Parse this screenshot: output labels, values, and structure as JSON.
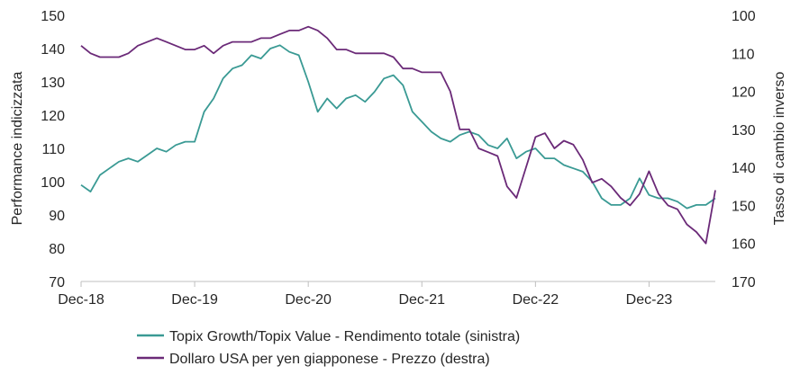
{
  "chart_data": {
    "type": "line",
    "xlabel": "",
    "ylabel_left": "Performance indicizzata",
    "ylabel_right": "Tasso di cambio inverso",
    "x_ticks": [
      "Dec-18",
      "Dec-19",
      "Dec-20",
      "Dec-21",
      "Dec-22",
      "Dec-23"
    ],
    "x_range": [
      "2018-12",
      "2024-07"
    ],
    "y_left": {
      "ylim": [
        70,
        150
      ],
      "ticks": [
        70,
        80,
        90,
        100,
        110,
        120,
        130,
        140,
        150
      ]
    },
    "y_right": {
      "ylim": [
        170,
        100
      ],
      "inverted": true,
      "ticks": [
        100,
        110,
        120,
        130,
        140,
        150,
        160,
        170
      ]
    },
    "grid": false,
    "legend_position": "bottom",
    "colors": {
      "growth_value": "#3a9a94",
      "usd_jpy": "#6b2a78",
      "axis": "#bfbfbf",
      "text": "#262626"
    },
    "series": [
      {
        "name": "Topix Growth/Topix Value - Rendimento totale (sinistra)",
        "axis": "left",
        "x": [
          "2018-12",
          "2019-01",
          "2019-02",
          "2019-03",
          "2019-04",
          "2019-05",
          "2019-06",
          "2019-07",
          "2019-08",
          "2019-09",
          "2019-10",
          "2019-11",
          "2019-12",
          "2020-01",
          "2020-02",
          "2020-03",
          "2020-04",
          "2020-05",
          "2020-06",
          "2020-07",
          "2020-08",
          "2020-09",
          "2020-10",
          "2020-11",
          "2020-12",
          "2021-01",
          "2021-02",
          "2021-03",
          "2021-04",
          "2021-05",
          "2021-06",
          "2021-07",
          "2021-08",
          "2021-09",
          "2021-10",
          "2021-11",
          "2021-12",
          "2022-01",
          "2022-02",
          "2022-03",
          "2022-04",
          "2022-05",
          "2022-06",
          "2022-07",
          "2022-08",
          "2022-09",
          "2022-10",
          "2022-11",
          "2022-12",
          "2023-01",
          "2023-02",
          "2023-03",
          "2023-04",
          "2023-05",
          "2023-06",
          "2023-07",
          "2023-08",
          "2023-09",
          "2023-10",
          "2023-11",
          "2023-12",
          "2024-01",
          "2024-02",
          "2024-03",
          "2024-04",
          "2024-05",
          "2024-06",
          "2024-07"
        ],
        "values": [
          99,
          97,
          102,
          104,
          106,
          107,
          106,
          108,
          110,
          109,
          111,
          112,
          112,
          121,
          125,
          131,
          134,
          135,
          138,
          137,
          140,
          141,
          139,
          138,
          130,
          121,
          125,
          122,
          125,
          126,
          124,
          127,
          131,
          132,
          129,
          121,
          118,
          115,
          113,
          112,
          114,
          115,
          114,
          111,
          110,
          113,
          107,
          109,
          110,
          107,
          107,
          105,
          104,
          103,
          100,
          95,
          93,
          93,
          95,
          101,
          96,
          95,
          95,
          94,
          92,
          93,
          93,
          95
        ]
      },
      {
        "name": "Dollaro USA per yen giapponese - Prezzo (destra)",
        "axis": "right",
        "x": [
          "2018-12",
          "2019-01",
          "2019-02",
          "2019-03",
          "2019-04",
          "2019-05",
          "2019-06",
          "2019-07",
          "2019-08",
          "2019-09",
          "2019-10",
          "2019-11",
          "2019-12",
          "2020-01",
          "2020-02",
          "2020-03",
          "2020-04",
          "2020-05",
          "2020-06",
          "2020-07",
          "2020-08",
          "2020-09",
          "2020-10",
          "2020-11",
          "2020-12",
          "2021-01",
          "2021-02",
          "2021-03",
          "2021-04",
          "2021-05",
          "2021-06",
          "2021-07",
          "2021-08",
          "2021-09",
          "2021-10",
          "2021-11",
          "2021-12",
          "2022-01",
          "2022-02",
          "2022-03",
          "2022-04",
          "2022-05",
          "2022-06",
          "2022-07",
          "2022-08",
          "2022-09",
          "2022-10",
          "2022-11",
          "2022-12",
          "2023-01",
          "2023-02",
          "2023-03",
          "2023-04",
          "2023-05",
          "2023-06",
          "2023-07",
          "2023-08",
          "2023-09",
          "2023-10",
          "2023-11",
          "2023-12",
          "2024-01",
          "2024-02",
          "2024-03",
          "2024-04",
          "2024-05",
          "2024-06",
          "2024-07"
        ],
        "values": [
          108,
          110,
          111,
          111,
          111,
          110,
          108,
          107,
          106,
          107,
          108,
          109,
          109,
          108,
          110,
          108,
          107,
          107,
          107,
          106,
          106,
          105,
          104,
          104,
          103,
          104,
          106,
          109,
          109,
          110,
          110,
          110,
          110,
          111,
          114,
          114,
          115,
          115,
          115,
          120,
          130,
          130,
          135,
          136,
          137,
          145,
          148,
          140,
          132,
          131,
          135,
          133,
          134,
          138,
          144,
          143,
          145,
          148,
          150,
          147,
          141,
          147,
          150,
          151,
          155,
          157,
          160,
          146
        ]
      }
    ]
  }
}
